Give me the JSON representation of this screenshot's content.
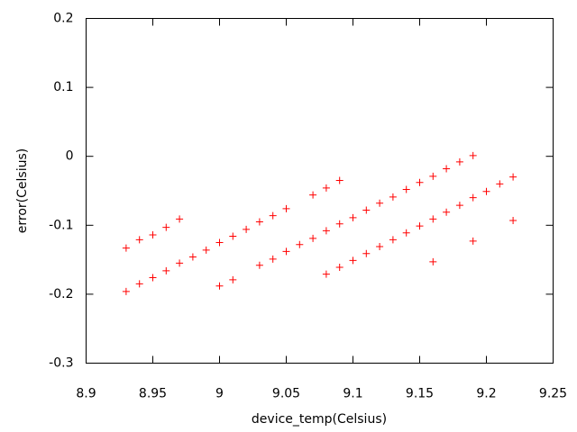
{
  "chart_data": {
    "type": "scatter",
    "x_label": "device_temp(Celsius)",
    "y_label": "error(Celsius)",
    "color": "#ff0000",
    "x": [
      8.93,
      8.94,
      8.95,
      8.96,
      8.97,
      8.93,
      8.94,
      8.95,
      8.96,
      8.97,
      8.98,
      8.99,
      9.0,
      9.01,
      9.02,
      9.03,
      9.04,
      9.05,
      9.0,
      9.01,
      9.03,
      9.04,
      9.05,
      9.06,
      9.07,
      9.08,
      9.09,
      9.1,
      9.11,
      9.12,
      9.13,
      9.14,
      9.15,
      9.16,
      9.17,
      9.18,
      9.19,
      9.07,
      9.08,
      9.09,
      9.08,
      9.09,
      9.1,
      9.11,
      9.12,
      9.13,
      9.14,
      9.15,
      9.16,
      9.17,
      9.18,
      9.19,
      9.2,
      9.21,
      9.22,
      9.16,
      9.19,
      9.22
    ],
    "values": [
      -0.133,
      -0.121,
      -0.114,
      -0.103,
      -0.091,
      -0.196,
      -0.185,
      -0.176,
      -0.166,
      -0.155,
      -0.146,
      -0.136,
      -0.125,
      -0.116,
      -0.106,
      -0.095,
      -0.086,
      -0.076,
      -0.188,
      -0.179,
      -0.158,
      -0.149,
      -0.138,
      -0.128,
      -0.119,
      -0.108,
      -0.098,
      -0.089,
      -0.078,
      -0.068,
      -0.059,
      -0.048,
      -0.038,
      -0.029,
      -0.018,
      -0.008,
      0.001,
      -0.056,
      -0.046,
      -0.035,
      -0.171,
      -0.161,
      -0.151,
      -0.141,
      -0.131,
      -0.121,
      -0.111,
      -0.101,
      -0.091,
      -0.081,
      -0.071,
      -0.06,
      -0.051,
      -0.04,
      -0.03,
      -0.153,
      -0.123,
      -0.093
    ],
    "xlim": [
      8.9,
      9.25
    ],
    "xticks": [
      8.9,
      8.95,
      9,
      9.05,
      9.1,
      9.15,
      9.2,
      9.25
    ],
    "ylim": [
      -0.3,
      0.2
    ],
    "yticks": [
      0.2,
      0.1,
      0,
      -0.1,
      -0.2,
      -0.3
    ]
  }
}
